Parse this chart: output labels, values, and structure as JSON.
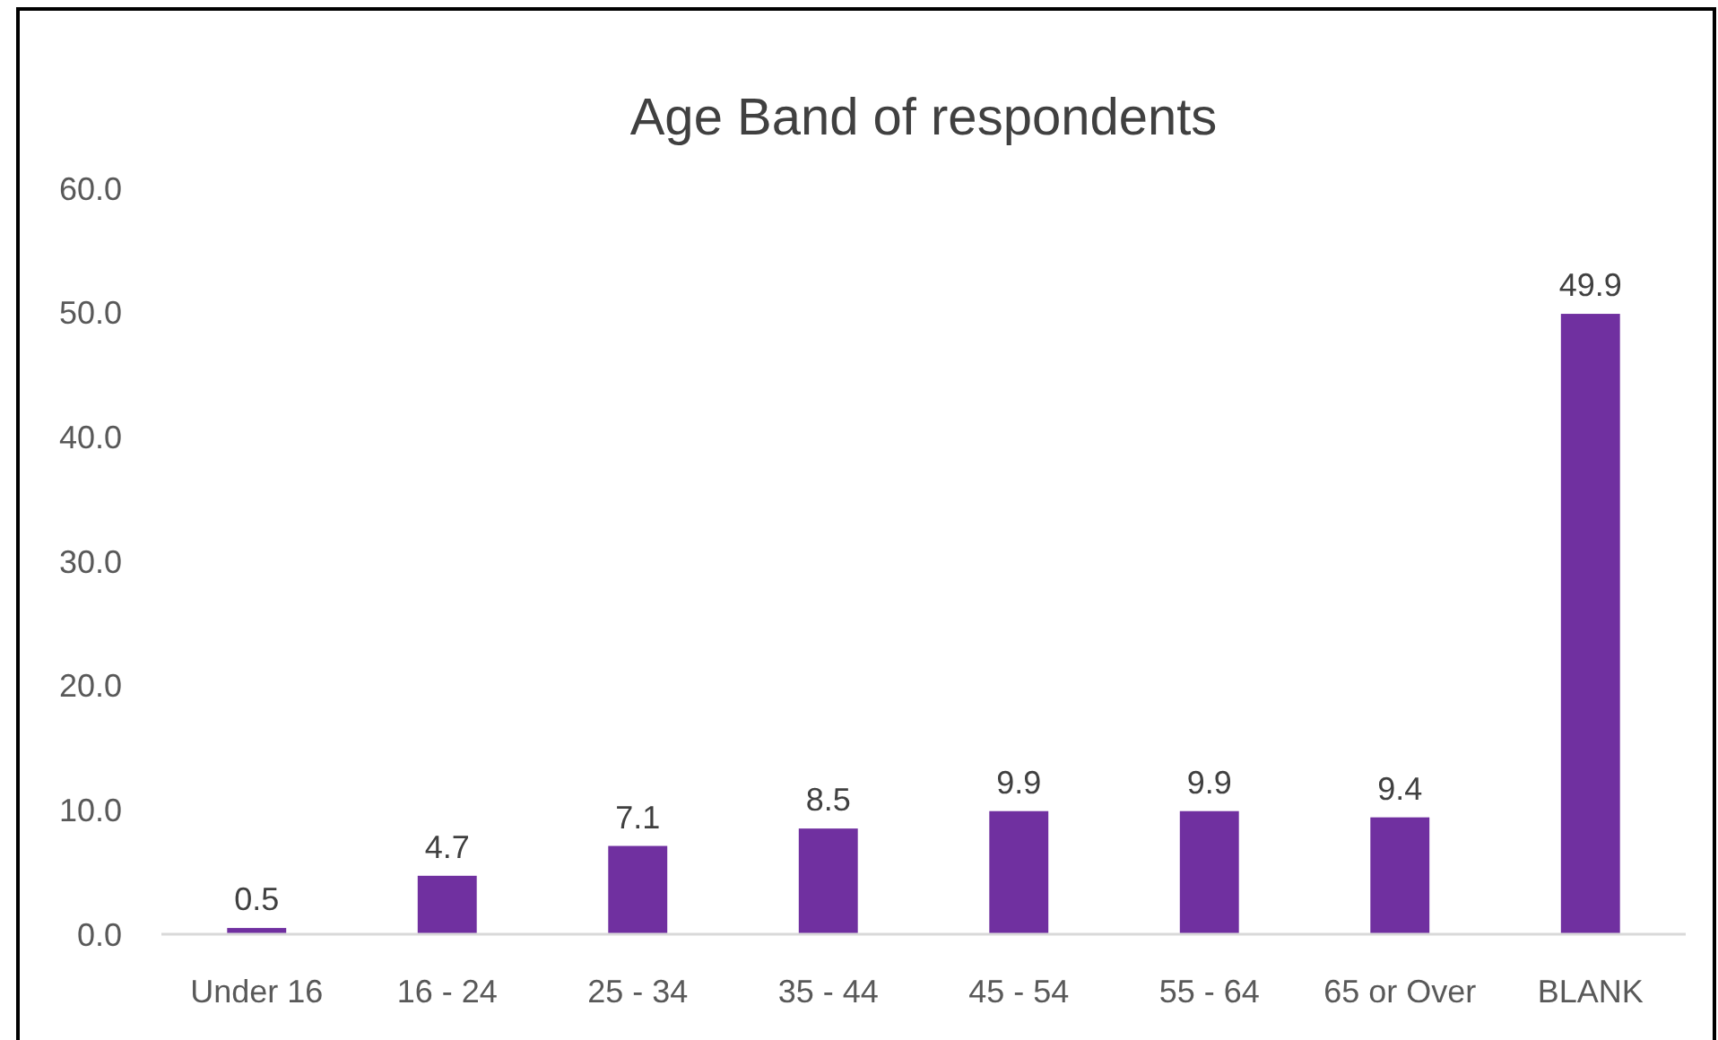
{
  "chart_data": {
    "type": "bar",
    "title": "Age Band of respondents",
    "categories": [
      "Under 16",
      "16 - 24",
      "25 - 34",
      "35 - 44",
      "45 - 54",
      "55 - 64",
      "65 or Over",
      "BLANK"
    ],
    "values": [
      0.5,
      4.7,
      7.1,
      8.5,
      9.9,
      9.9,
      9.4,
      49.9
    ],
    "color": "#7030a0",
    "ylim": [
      0,
      60
    ],
    "yticks": [
      {
        "value": 0,
        "label": "0.0"
      },
      {
        "value": 10,
        "label": "10.0"
      },
      {
        "value": 20,
        "label": "20.0"
      },
      {
        "value": 30,
        "label": "30.0"
      },
      {
        "value": 40,
        "label": "40.0"
      },
      {
        "value": 50,
        "label": "50.0"
      },
      {
        "value": 60,
        "label": "60.0"
      }
    ],
    "data_labels": true,
    "grid": false
  }
}
